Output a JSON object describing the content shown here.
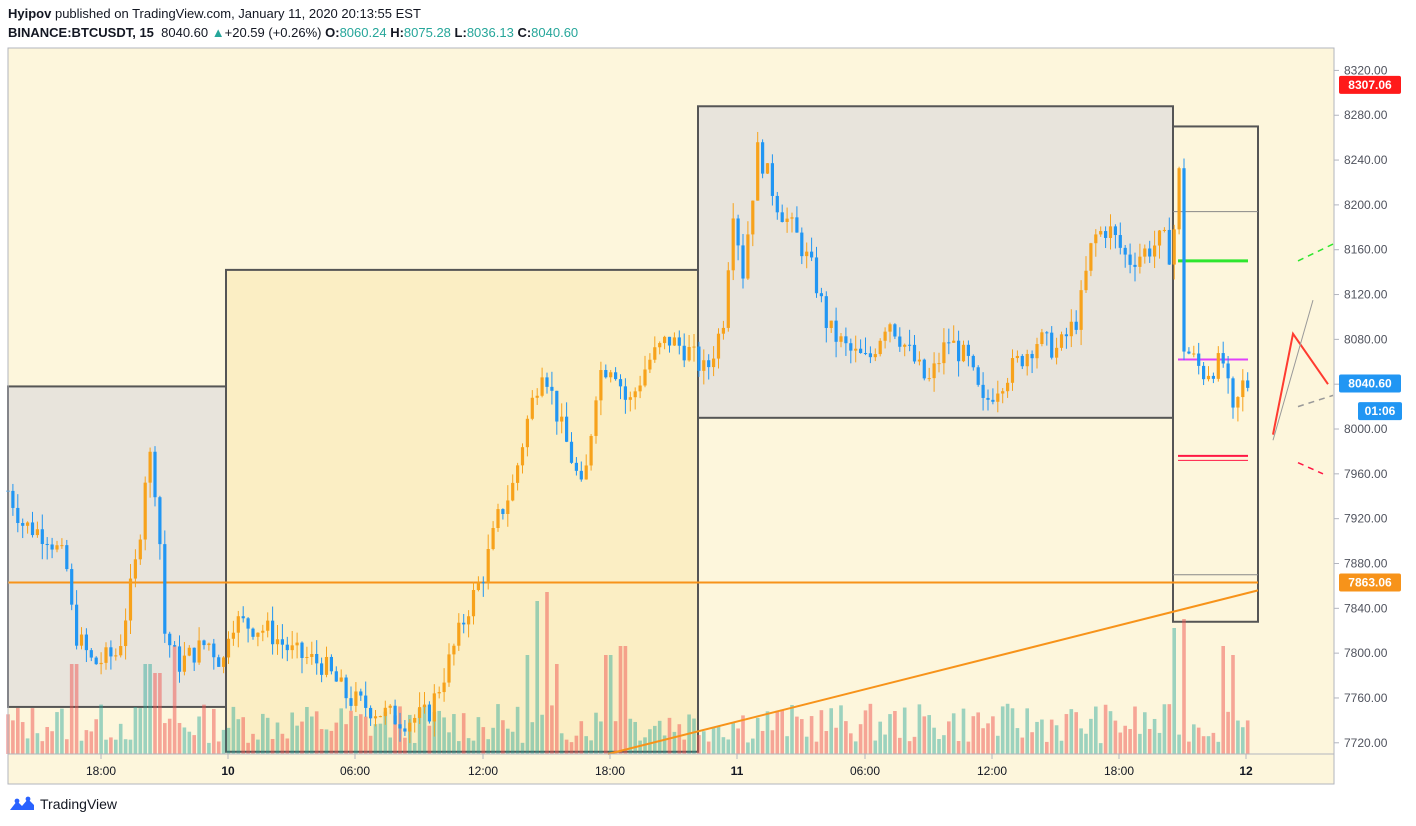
{
  "header": {
    "author": "Hyipov",
    "published_text": "published on TradingView.com, January 11, 2020 20:13:55 EST",
    "symbol": "BINANCE:BTCUSDT, 15",
    "last": "8040.60",
    "change": "+20.59 (+0.26%)",
    "o_label": "O:",
    "o_value": "8060.24",
    "h_label": "H:",
    "h_value": "8075.28",
    "l_label": "L:",
    "l_value": "8036.13",
    "c_label": "C:",
    "c_value": "8040.60"
  },
  "footer": {
    "brand": "TradingView"
  },
  "colors": {
    "up": "#f7a21b",
    "down": "#2196f3",
    "bg": "#fdf6dc",
    "box_gray": "#e8e4dc",
    "box_gold": "#fbeec4",
    "orange_line": "#f7931a",
    "green_line": "#2ee62e",
    "magenta_line": "#e040fb",
    "red_line": "#ff1744"
  },
  "chart_data": {
    "type": "candlestick",
    "symbol": "BINANCE:BTCUSDT",
    "interval": "15",
    "ylim": [
      7710,
      8340
    ],
    "y_ticks": [
      "8320.00",
      "8280.00",
      "8240.00",
      "8200.00",
      "8160.00",
      "8120.00",
      "8080.00",
      "8040.00",
      "8000.00",
      "7960.00",
      "7920.00",
      "7880.00",
      "7840.00",
      "7800.00",
      "7760.00",
      "7720.00"
    ],
    "x_ticks": [
      "18:00",
      "10",
      "06:00",
      "12:00",
      "18:00",
      "11",
      "06:00",
      "12:00",
      "18:00",
      "12"
    ],
    "price_labels": [
      {
        "text": "8307.06",
        "value": 8307.06,
        "color": "#ff1a1a"
      },
      {
        "text": "8040.60",
        "value": 8040.6,
        "color": "#2196f3"
      },
      {
        "text": "01:06",
        "value": 8016,
        "color": "#2196f3"
      },
      {
        "text": "7863.06",
        "value": 7863.06,
        "color": "#f7931a"
      }
    ],
    "boxes": [
      {
        "t0": 0,
        "t1": 218,
        "top": 8038,
        "bottom": 7752,
        "fill": "#e8e4dc"
      },
      {
        "t0": 218,
        "t1": 690,
        "top": 8142,
        "bottom": 7712,
        "fill": "#fbeec4"
      },
      {
        "t0": 690,
        "t1": 1165,
        "top": 8288,
        "bottom": 8010,
        "fill": "#e8e4dc"
      },
      {
        "t0": 1165,
        "t1": 1250,
        "top": 8270,
        "bottom": 7828,
        "fill": "#fdf6dc"
      }
    ],
    "horizontal_levels": [
      {
        "value": 7863.06,
        "t0": 0,
        "t1": 1250,
        "color": "#f7931a",
        "width": 2
      },
      {
        "value": 8194,
        "t0": 1165,
        "t1": 1250,
        "color": "#888888",
        "width": 1
      },
      {
        "value": 7870,
        "t0": 1165,
        "t1": 1250,
        "color": "#888888",
        "width": 1
      },
      {
        "value": 8150,
        "t0": 1170,
        "t1": 1240,
        "color": "#2ee62e",
        "width": 3
      },
      {
        "value": 8062,
        "t0": 1170,
        "t1": 1240,
        "color": "#e040fb",
        "width": 2
      },
      {
        "value": 7976,
        "t0": 1170,
        "t1": 1240,
        "color": "#ff1744",
        "width": 2
      },
      {
        "value": 7972,
        "t0": 1170,
        "t1": 1240,
        "color": "#ff1744",
        "width": 1
      }
    ],
    "trendline": {
      "t0": 600,
      "v0": 7710,
      "t1": 1250,
      "v1": 7856,
      "color": "#f7931a"
    },
    "series_seed": 7,
    "series_anchors": [
      [
        0,
        7945
      ],
      [
        15,
        7915
      ],
      [
        40,
        7905
      ],
      [
        58,
        7880
      ],
      [
        66,
        7820
      ],
      [
        85,
        7790
      ],
      [
        110,
        7800
      ],
      [
        130,
        7890
      ],
      [
        140,
        7985
      ],
      [
        150,
        7935
      ],
      [
        156,
        7820
      ],
      [
        170,
        7790
      ],
      [
        185,
        7800
      ],
      [
        200,
        7810
      ],
      [
        215,
        7790
      ],
      [
        222,
        7830
      ],
      [
        240,
        7825
      ],
      [
        260,
        7820
      ],
      [
        285,
        7800
      ],
      [
        315,
        7790
      ],
      [
        340,
        7760
      ],
      [
        365,
        7750
      ],
      [
        395,
        7740
      ],
      [
        420,
        7745
      ],
      [
        440,
        7790
      ],
      [
        460,
        7840
      ],
      [
        475,
        7870
      ],
      [
        490,
        7920
      ],
      [
        505,
        7950
      ],
      [
        520,
        8010
      ],
      [
        535,
        8060
      ],
      [
        550,
        8010
      ],
      [
        565,
        7970
      ],
      [
        575,
        7940
      ],
      [
        590,
        8050
      ],
      [
        605,
        8060
      ],
      [
        620,
        8020
      ],
      [
        640,
        8060
      ],
      [
        660,
        8080
      ],
      [
        680,
        8070
      ],
      [
        698,
        8050
      ],
      [
        715,
        8095
      ],
      [
        725,
        8200
      ],
      [
        735,
        8140
      ],
      [
        750,
        8250
      ],
      [
        770,
        8200
      ],
      [
        790,
        8170
      ],
      [
        805,
        8140
      ],
      [
        820,
        8090
      ],
      [
        840,
        8070
      ],
      [
        860,
        8060
      ],
      [
        880,
        8100
      ],
      [
        900,
        8070
      ],
      [
        920,
        8040
      ],
      [
        940,
        8080
      ],
      [
        960,
        8060
      ],
      [
        975,
        8020
      ],
      [
        990,
        8040
      ],
      [
        1010,
        8060
      ],
      [
        1030,
        8080
      ],
      [
        1050,
        8070
      ],
      [
        1070,
        8100
      ],
      [
        1085,
        8170
      ],
      [
        1100,
        8180
      ],
      [
        1120,
        8150
      ],
      [
        1140,
        8160
      ],
      [
        1155,
        8170
      ],
      [
        1165,
        8150
      ],
      [
        1170,
        8270
      ],
      [
        1175,
        8075
      ],
      [
        1195,
        8050
      ],
      [
        1215,
        8060
      ],
      [
        1225,
        8010
      ],
      [
        1235,
        8040
      ]
    ],
    "volume_seed": 13,
    "volume_spikes": [
      [
        66,
        0.5
      ],
      [
        140,
        0.5
      ],
      [
        150,
        0.45
      ],
      [
        165,
        0.6
      ],
      [
        520,
        0.55
      ],
      [
        530,
        0.85
      ],
      [
        540,
        0.9
      ],
      [
        550,
        0.5
      ],
      [
        600,
        0.55
      ],
      [
        615,
        0.6
      ],
      [
        1165,
        0.7
      ],
      [
        1175,
        0.75
      ],
      [
        1215,
        0.6
      ],
      [
        1225,
        0.55
      ]
    ]
  }
}
